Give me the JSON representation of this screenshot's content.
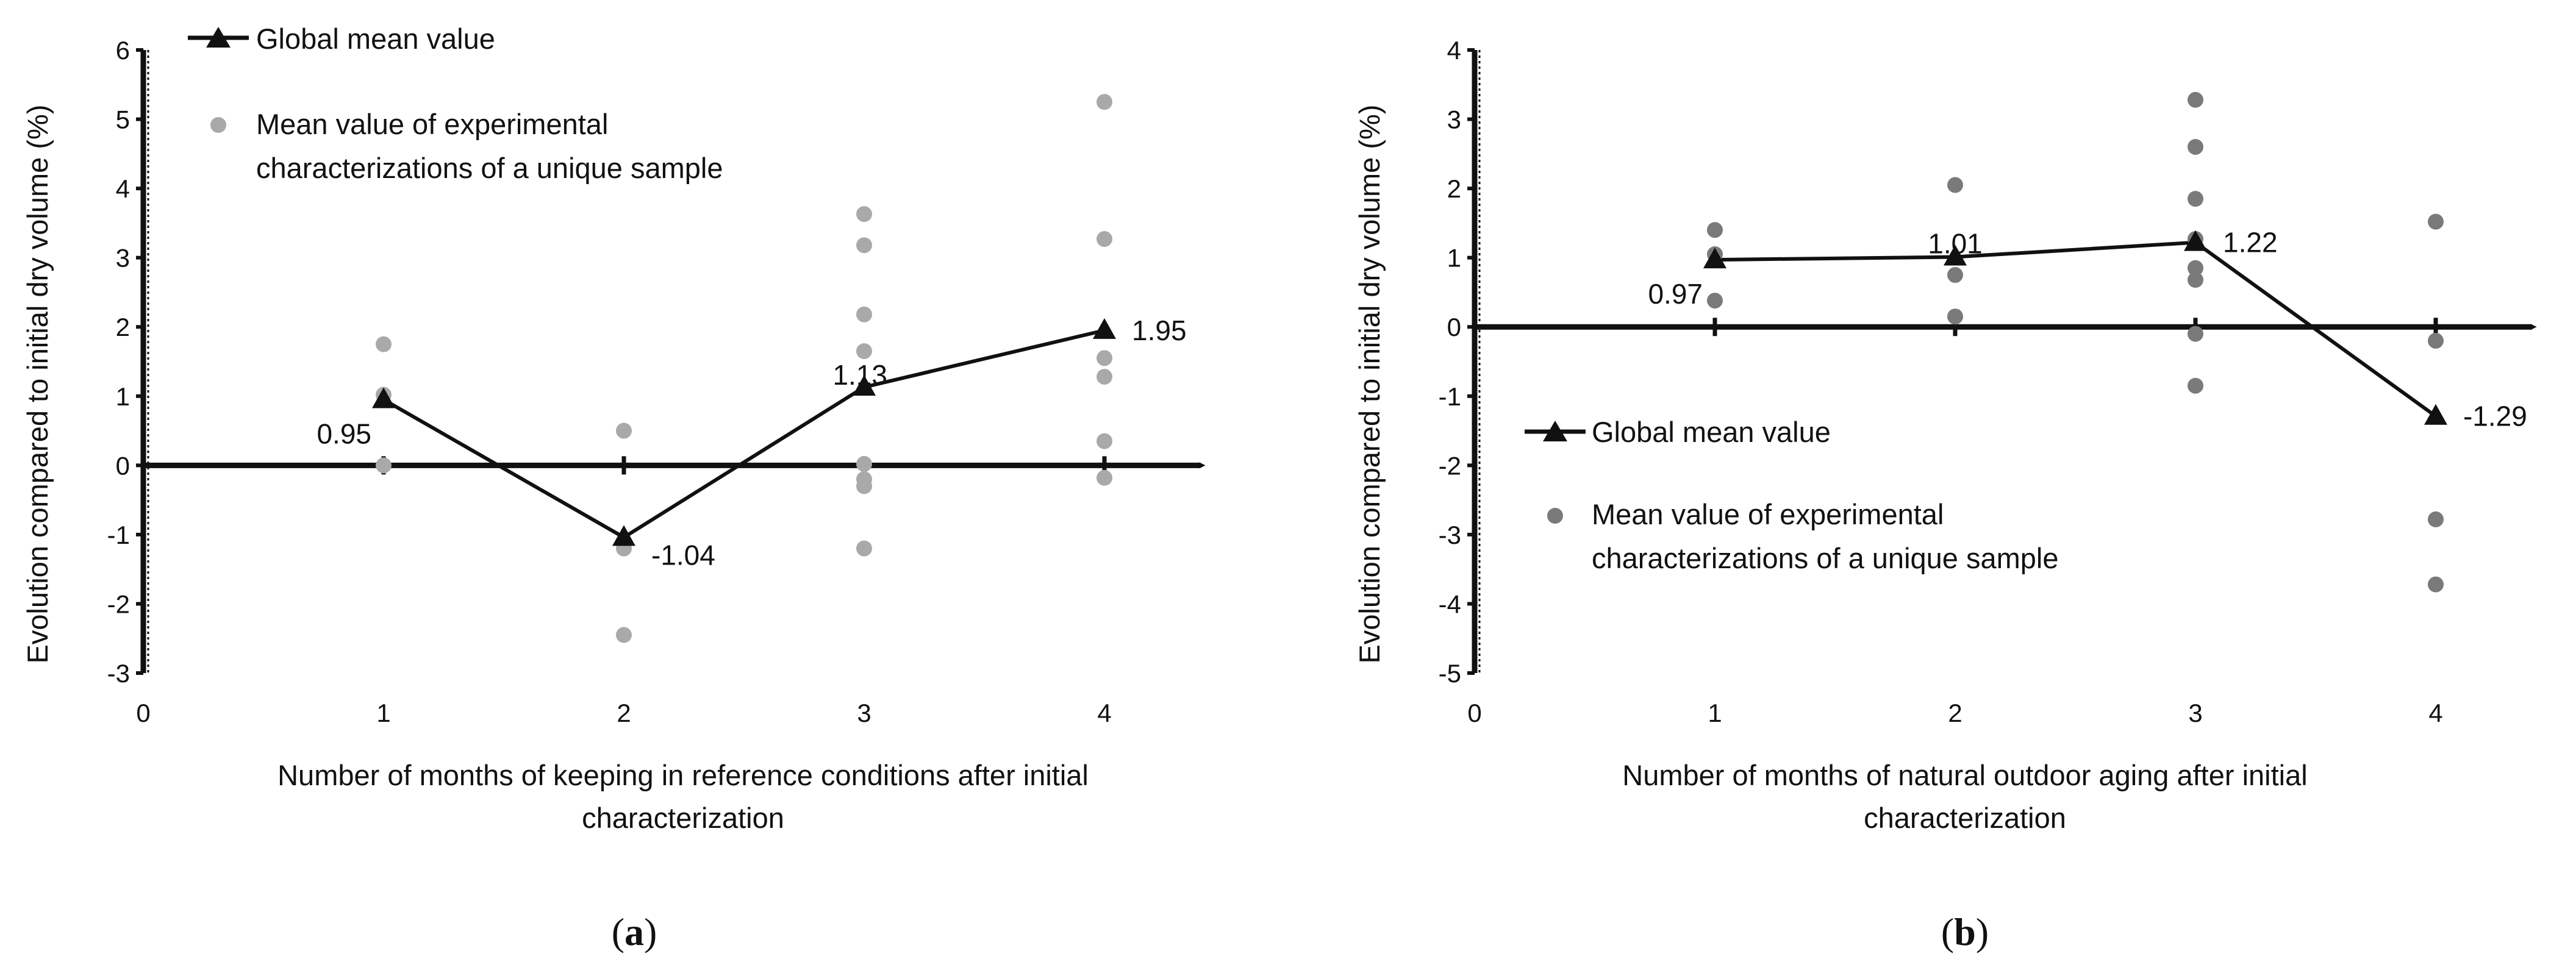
{
  "chart_data": [
    {
      "id": "a",
      "type": "scatter",
      "caption_open": "(",
      "caption_letter": "a",
      "caption_close": ")",
      "xlabel": "Number of months of keeping in reference conditions after initial characterization",
      "xlabel_lines": [
        "Number of months of keeping in reference conditions after initial",
        "characterization"
      ],
      "ylabel": "Evolution compared to initial dry volume (%)",
      "xlim": [
        0,
        4.4
      ],
      "ylim": [
        -3,
        6
      ],
      "x_ticks": [
        0,
        1,
        2,
        3,
        4
      ],
      "y_ticks": [
        -3,
        -2,
        -1,
        0,
        1,
        2,
        3,
        4,
        5,
        6
      ],
      "x_tick_labels": [
        "0",
        "1",
        "2",
        "3",
        "4"
      ],
      "y_tick_labels": [
        "-3",
        "-2",
        "-1",
        "0",
        "1",
        "2",
        "3",
        "4",
        "5",
        "6"
      ],
      "point_color": "#a9a9a9",
      "line_color": "#111111",
      "legend": {
        "position": "top-left",
        "line_label": "Global mean value",
        "points_label_lines": [
          "Mean value of experimental",
          "characterizations of a unique sample"
        ]
      },
      "series": [
        {
          "name": "Global mean value",
          "kind": "line",
          "x": [
            1,
            2,
            3,
            4
          ],
          "y": [
            0.95,
            -1.04,
            1.13,
            1.95
          ],
          "labels": [
            "0.95",
            "-1.04",
            "1.13",
            "1.95"
          ],
          "label_sides": [
            "left-below",
            "right-below",
            "left-above",
            "right"
          ]
        },
        {
          "name": "Mean value of experimental characterizations of a unique sample",
          "kind": "points",
          "x": [
            1,
            1,
            1,
            2,
            2,
            2,
            3,
            3,
            3,
            3,
            3,
            3,
            3,
            3,
            4,
            4,
            4,
            4,
            4,
            4
          ],
          "y": [
            1.75,
            1.02,
            0.0,
            0.5,
            -1.2,
            -2.45,
            3.63,
            3.18,
            2.18,
            1.65,
            0.02,
            -0.2,
            -0.3,
            -1.2,
            5.25,
            3.27,
            1.55,
            1.28,
            0.35,
            -0.18
          ]
        }
      ]
    },
    {
      "id": "b",
      "type": "scatter",
      "caption_open": "(",
      "caption_letter": "b",
      "caption_close": ")",
      "xlabel": "Number of months of natural outdoor aging after initial characterization",
      "xlabel_lines": [
        "Number of months of natural outdoor  aging after initial",
        "characterization"
      ],
      "ylabel": "Evolution compared to initial dry volume (%)",
      "xlim": [
        0,
        4.4
      ],
      "ylim": [
        -5,
        4
      ],
      "x_ticks": [
        0,
        1,
        2,
        3,
        4
      ],
      "y_ticks": [
        -5,
        -4,
        -3,
        -2,
        -1,
        0,
        1,
        2,
        3,
        4
      ],
      "x_tick_labels": [
        "0",
        "1",
        "2",
        "3",
        "4"
      ],
      "y_tick_labels": [
        "-5",
        "-4",
        "-3",
        "-2",
        "-1",
        "0",
        "1",
        "2",
        "3",
        "4"
      ],
      "point_color": "#7a7a7a",
      "line_color": "#111111",
      "legend": {
        "position": "center-left",
        "line_label": "Global mean value",
        "points_label_lines": [
          "Mean value of experimental",
          "characterizations of a unique sample"
        ]
      },
      "series": [
        {
          "name": "Global mean value",
          "kind": "line",
          "x": [
            1,
            2,
            3,
            4
          ],
          "y": [
            0.97,
            1.01,
            1.22,
            -1.29
          ],
          "labels": [
            "0.97",
            "1.01",
            "1.22",
            "-1.29"
          ],
          "label_sides": [
            "left-below",
            "center-above",
            "right",
            "right"
          ]
        },
        {
          "name": "Mean value of experimental characterizations of a unique sample",
          "kind": "points",
          "x": [
            1,
            1,
            1,
            2,
            2,
            2,
            3,
            3,
            3,
            3,
            3,
            3,
            3,
            3,
            4,
            4,
            4,
            4
          ],
          "y": [
            1.4,
            1.05,
            0.38,
            2.05,
            0.75,
            0.15,
            3.28,
            2.6,
            1.85,
            1.27,
            0.85,
            0.68,
            -0.1,
            -0.85,
            1.52,
            -0.2,
            -2.78,
            -3.72
          ]
        }
      ]
    }
  ]
}
